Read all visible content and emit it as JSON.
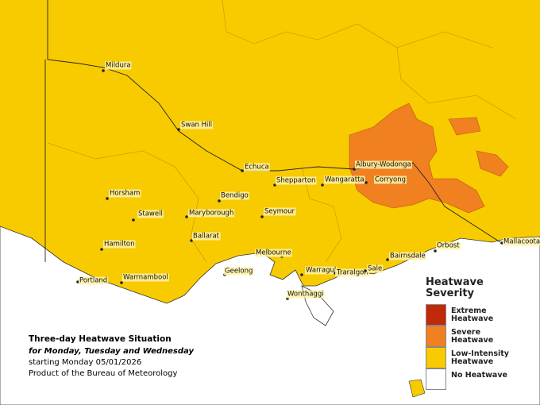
{
  "map": {
    "towns": [
      "Mildura",
      "Swan Hill",
      "Echuca",
      "Horsham",
      "Stawell",
      "Hamilton",
      "Portland",
      "Warrnambool",
      "Bendigo",
      "Maryborough",
      "Ballarat",
      "Seymour",
      "Shepparton",
      "Wangaratta",
      "Albury-Wodonga",
      "Corryong",
      "Melbourne",
      "Geelong",
      "Warragul",
      "Wonthaggi",
      "Traralgon",
      "Sale",
      "Bairnsdale",
      "Orbost",
      "Mallacoota"
    ],
    "legend": {
      "title": "Heatwave Severity",
      "items": [
        {
          "label": "Extreme Heatwave",
          "color": "#c0290a"
        },
        {
          "label": "Severe Heatwave",
          "color": "#f08020"
        },
        {
          "label": "Low-Intensity Heatwave",
          "color": "#f7cb00"
        },
        {
          "label": "No Heatwave",
          "color": "#ffffff"
        }
      ]
    },
    "caption": {
      "title": "Three-day Heatwave Situation",
      "subtitle": "for Monday, Tuesday and Wednesday",
      "start": "starting Monday 05/01/2026",
      "credit": "Product of the Bureau of Meteorology"
    }
  }
}
